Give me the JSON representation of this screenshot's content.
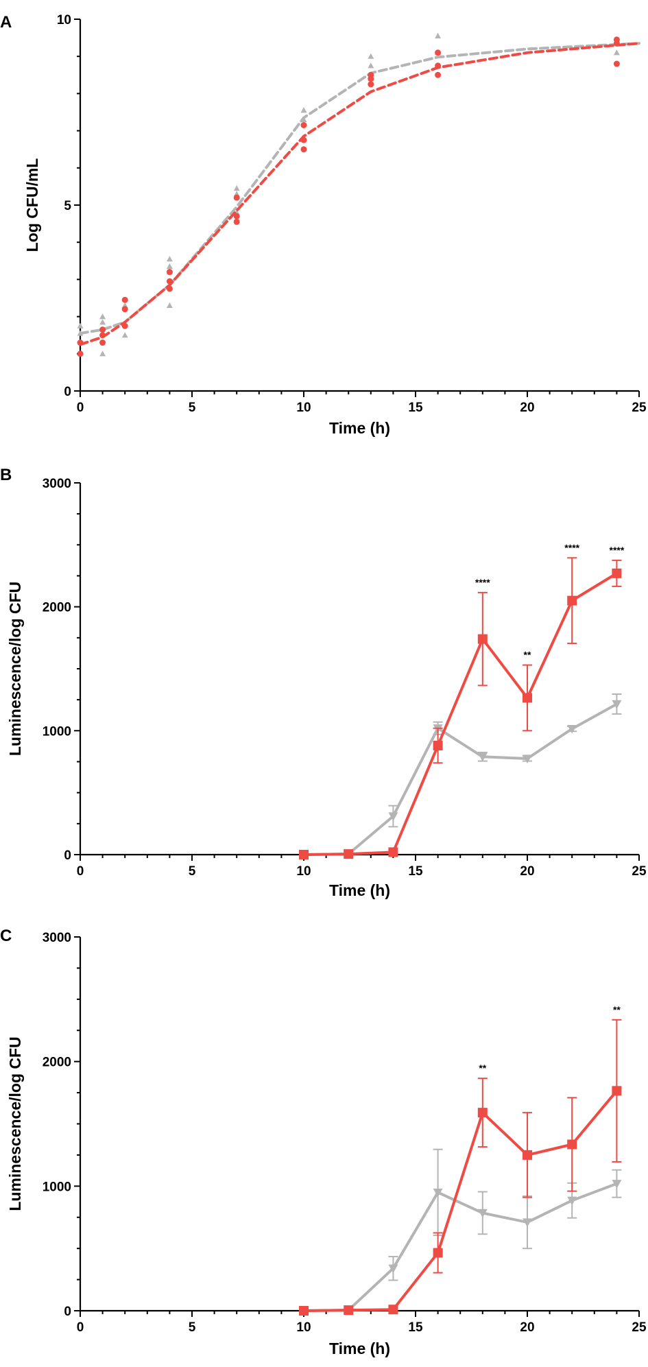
{
  "colors": {
    "red": "#EE4B45",
    "gray": "#B4B4B4",
    "axis": "#000000"
  },
  "chart_data": [
    {
      "panel": "A",
      "type": "scatter",
      "xlabel": "Time (h)",
      "ylabel": "Log CFU/mL",
      "xlim": [
        0,
        25
      ],
      "ylim": [
        0,
        10
      ],
      "xticks": [
        0,
        5,
        10,
        15,
        20,
        25
      ],
      "yticks": [
        0,
        5,
        10
      ],
      "grid": false,
      "series": [
        {
          "color": "gray",
          "marker": "triangle-up",
          "fit_line": "dashed",
          "points": [
            [
              0,
              1.55
            ],
            [
              0,
              1.75
            ],
            [
              1,
              1.0
            ],
            [
              1,
              1.85
            ],
            [
              1,
              2.0
            ],
            [
              2,
              1.5
            ],
            [
              2,
              2.25
            ],
            [
              2,
              2.3
            ],
            [
              4,
              2.3
            ],
            [
              4,
              3.2
            ],
            [
              4,
              3.35
            ],
            [
              4,
              3.55
            ],
            [
              7,
              4.8
            ],
            [
              7,
              5.3
            ],
            [
              7,
              5.45
            ],
            [
              10,
              6.8
            ],
            [
              10,
              7.3
            ],
            [
              10,
              7.55
            ],
            [
              13,
              8.4
            ],
            [
              13,
              8.75
            ],
            [
              13,
              9.0
            ],
            [
              16,
              8.75
            ],
            [
              16,
              9.1
            ],
            [
              16,
              9.55
            ],
            [
              24,
              9.1
            ],
            [
              24,
              9.35
            ]
          ],
          "fit": [
            [
              0,
              1.55
            ],
            [
              1,
              1.65
            ],
            [
              2,
              1.85
            ],
            [
              4,
              2.85
            ],
            [
              7,
              4.95
            ],
            [
              10,
              7.35
            ],
            [
              13,
              8.55
            ],
            [
              16,
              8.98
            ],
            [
              20,
              9.2
            ],
            [
              25,
              9.35
            ]
          ]
        },
        {
          "color": "red",
          "marker": "circle",
          "fit_line": "dashed",
          "points": [
            [
              0,
              1.0
            ],
            [
              0,
              1.3
            ],
            [
              1,
              1.3
            ],
            [
              1,
              1.5
            ],
            [
              1,
              1.65
            ],
            [
              2,
              1.75
            ],
            [
              2,
              2.2
            ],
            [
              2,
              2.45
            ],
            [
              4,
              2.75
            ],
            [
              4,
              2.95
            ],
            [
              4,
              3.2
            ],
            [
              7,
              4.55
            ],
            [
              7,
              4.7
            ],
            [
              7,
              5.2
            ],
            [
              10,
              6.5
            ],
            [
              10,
              6.75
            ],
            [
              10,
              7.15
            ],
            [
              13,
              8.25
            ],
            [
              13,
              8.4
            ],
            [
              13,
              8.5
            ],
            [
              16,
              8.5
            ],
            [
              16,
              8.75
            ],
            [
              16,
              9.1
            ],
            [
              24,
              8.8
            ],
            [
              24,
              9.35
            ],
            [
              24,
              9.45
            ]
          ],
          "fit": [
            [
              0,
              1.25
            ],
            [
              1,
              1.45
            ],
            [
              2,
              1.85
            ],
            [
              4,
              2.85
            ],
            [
              7,
              4.85
            ],
            [
              10,
              6.85
            ],
            [
              13,
              8.05
            ],
            [
              16,
              8.7
            ],
            [
              20,
              9.1
            ],
            [
              25,
              9.35
            ]
          ]
        }
      ]
    },
    {
      "panel": "B",
      "type": "line",
      "xlabel": "Time (h)",
      "ylabel": "Luminescence/log CFU",
      "xlim": [
        0,
        25
      ],
      "ylim": [
        0,
        3000
      ],
      "xticks": [
        0,
        5,
        10,
        15,
        20,
        25
      ],
      "yticks": [
        0,
        1000,
        2000,
        3000
      ],
      "grid": false,
      "series": [
        {
          "color": "gray",
          "marker": "triangle-down",
          "x": [
            10,
            12,
            14,
            16,
            18,
            20,
            22,
            24
          ],
          "y": [
            0,
            5,
            310,
            1020,
            790,
            775,
            1015,
            1215
          ],
          "err": [
            0,
            0,
            85,
            50,
            35,
            20,
            20,
            80
          ]
        },
        {
          "color": "red",
          "marker": "square",
          "x": [
            10,
            12,
            14,
            16,
            18,
            20,
            22,
            24
          ],
          "y": [
            0,
            5,
            20,
            880,
            1740,
            1265,
            2050,
            2270
          ],
          "err": [
            0,
            0,
            0,
            140,
            375,
            265,
            345,
            105
          ]
        }
      ],
      "annotations": [
        {
          "x": 18,
          "y": 2115,
          "text": "****"
        },
        {
          "x": 20,
          "y": 1530,
          "text": "**"
        },
        {
          "x": 22,
          "y": 2395,
          "text": "****"
        },
        {
          "x": 24,
          "y": 2375,
          "text": "****"
        }
      ]
    },
    {
      "panel": "C",
      "type": "line",
      "xlabel": "Time (h)",
      "ylabel": "Luminescence/log CFU",
      "xlim": [
        0,
        25
      ],
      "ylim": [
        0,
        3000
      ],
      "xticks": [
        0,
        5,
        10,
        15,
        20,
        25
      ],
      "yticks": [
        0,
        1000,
        2000,
        3000
      ],
      "grid": false,
      "series": [
        {
          "color": "gray",
          "marker": "triangle-down",
          "x": [
            10,
            12,
            14,
            16,
            18,
            20,
            22,
            24
          ],
          "y": [
            0,
            5,
            340,
            950,
            785,
            710,
            885,
            1020
          ],
          "err": [
            0,
            0,
            95,
            345,
            170,
            210,
            140,
            110
          ]
        },
        {
          "color": "red",
          "marker": "square",
          "x": [
            10,
            12,
            14,
            16,
            18,
            20,
            22,
            24
          ],
          "y": [
            0,
            5,
            10,
            465,
            1590,
            1250,
            1335,
            1765
          ],
          "err": [
            0,
            0,
            0,
            160,
            275,
            340,
            375,
            570
          ]
        }
      ],
      "annotations": [
        {
          "x": 18,
          "y": 1865,
          "text": "**"
        },
        {
          "x": 24,
          "y": 2335,
          "text": "**"
        }
      ]
    }
  ]
}
